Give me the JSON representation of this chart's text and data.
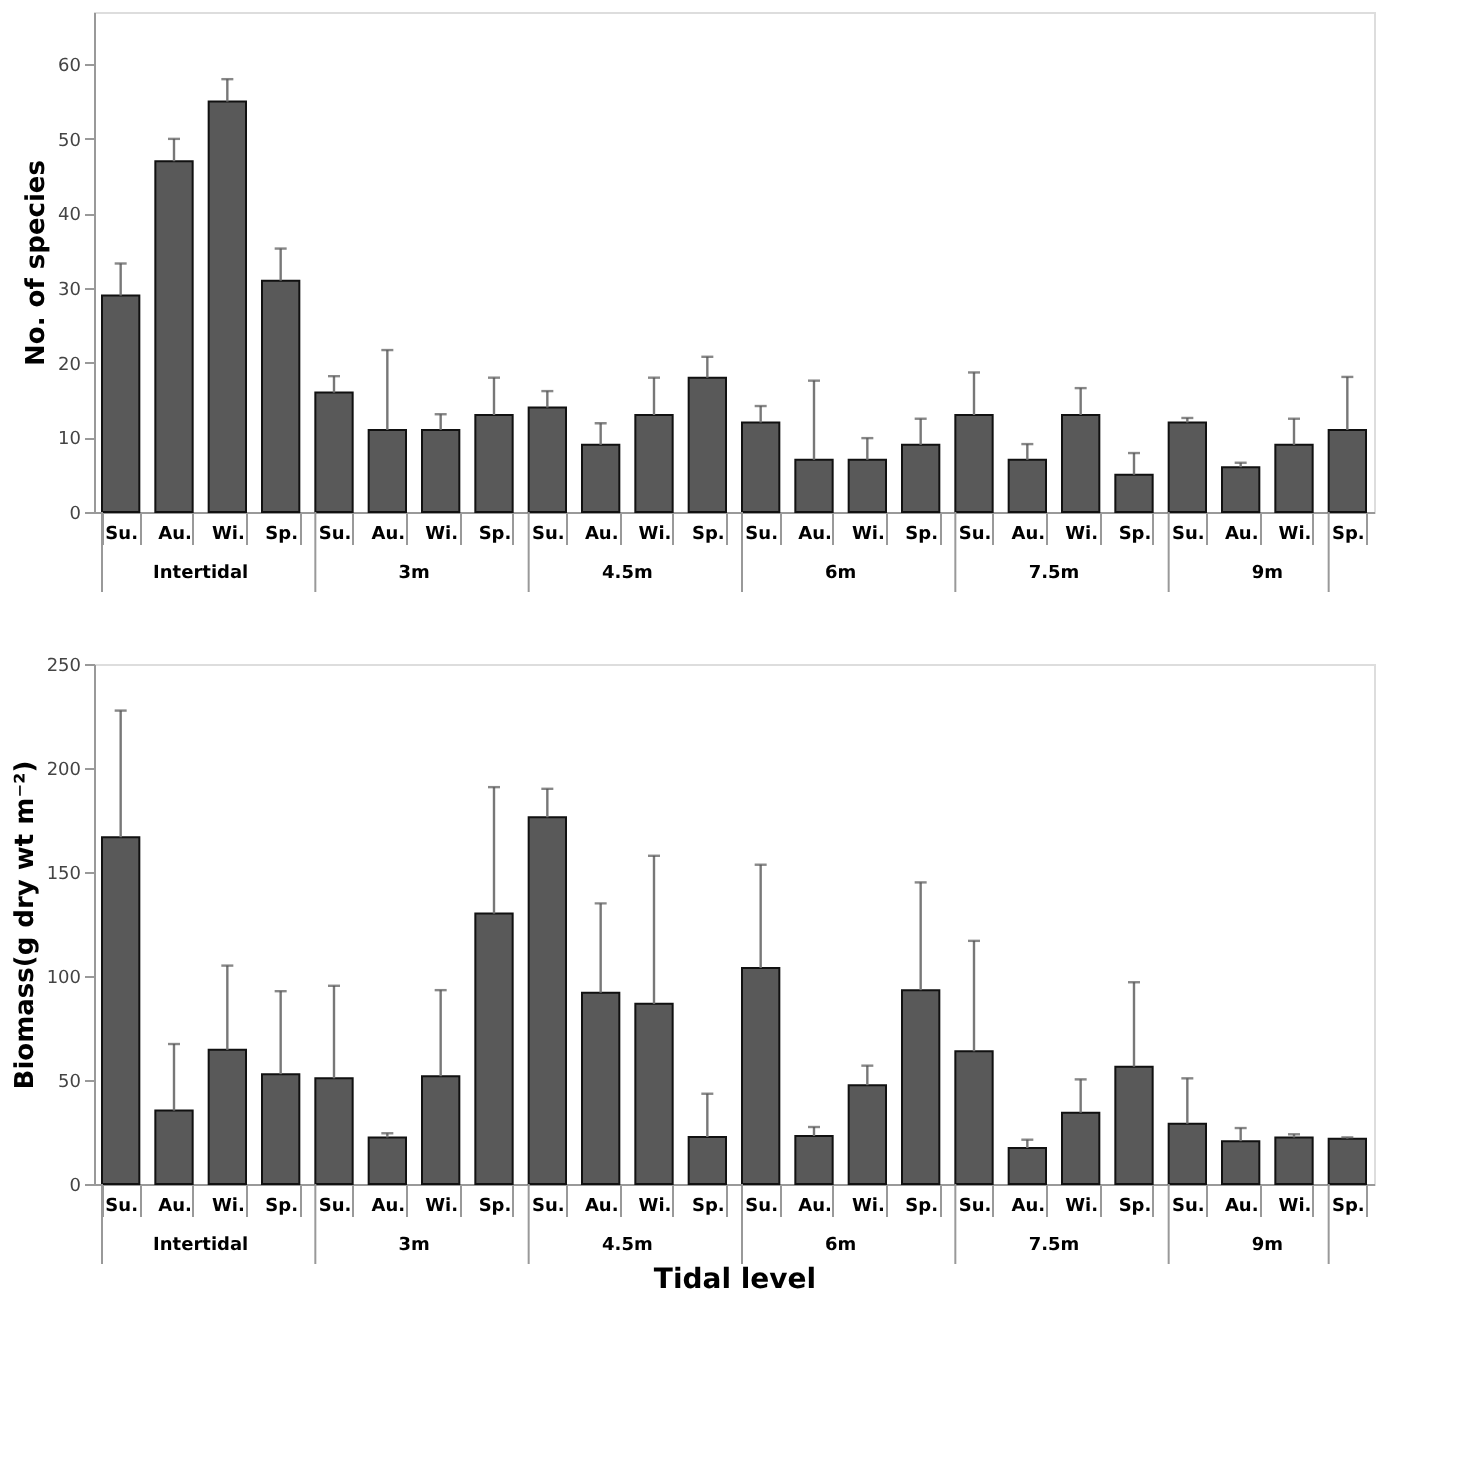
{
  "chart_data": [
    {
      "type": "bar",
      "ylabel": "No. of species",
      "color": "#595959",
      "grid": false,
      "ylim": [
        0,
        67
      ],
      "yticks": [
        0,
        10,
        20,
        30,
        40,
        50,
        60
      ],
      "categories": [
        "Su.",
        "Au.",
        "Wi.",
        "Sp.",
        "Su.",
        "Au.",
        "Wi.",
        "Sp.",
        "Su.",
        "Au.",
        "Wi.",
        "Sp.",
        "Su.",
        "Au.",
        "Wi.",
        "Sp.",
        "Su.",
        "Au.",
        "Wi.",
        "Sp.",
        "Su.",
        "Au.",
        "Wi.",
        "Sp."
      ],
      "values": [
        29,
        47,
        55,
        31,
        16,
        11,
        11,
        13,
        14,
        9,
        13,
        18,
        12,
        7,
        7,
        9,
        13,
        7,
        13,
        5,
        12,
        6,
        9,
        11
      ],
      "errors": [
        [
          29,
          33.3
        ],
        [
          47,
          50
        ],
        [
          55,
          58
        ],
        [
          31,
          35.3
        ],
        [
          16,
          18.2
        ],
        [
          11,
          21.7
        ],
        [
          11,
          13.1
        ],
        [
          13,
          18
        ],
        [
          14,
          16.2
        ],
        [
          9,
          11.9
        ],
        [
          13,
          18
        ],
        [
          18,
          20.8
        ],
        [
          12,
          14.2
        ],
        [
          7,
          17.6
        ],
        [
          7,
          9.9
        ],
        [
          9,
          12.5
        ],
        [
          13,
          18.7
        ],
        [
          7,
          9.1
        ],
        [
          13,
          16.6
        ],
        [
          5,
          7.9
        ],
        [
          12,
          12.6
        ],
        [
          6,
          6.6
        ],
        [
          9,
          12.5
        ],
        [
          11,
          18.1
        ]
      ],
      "annotations": [
        "Intertidal",
        "3m",
        "4.5m",
        "6m",
        "7.5m",
        "9m"
      ]
    },
    {
      "type": "bar",
      "ylabel": "Biomass(g dry wt m⁻²)",
      "xlabel": "Tidal level",
      "color": "#595959",
      "grid": false,
      "ylim": [
        0,
        250
      ],
      "yticks": [
        0,
        50,
        100,
        150,
        200,
        250
      ],
      "categories": [
        "Su.",
        "Au.",
        "Wi.",
        "Sp.",
        "Su.",
        "Au.",
        "Wi.",
        "Sp.",
        "Su.",
        "Au.",
        "Wi.",
        "Sp.",
        "Su.",
        "Au.",
        "Wi.",
        "Sp.",
        "Su.",
        "Au.",
        "Wi.",
        "Sp.",
        "Su.",
        "Au.",
        "Wi.",
        "Sp."
      ],
      "values": [
        166.7,
        35.3,
        64.5,
        52.8,
        50.8,
        22.4,
        51.8,
        130,
        176.3,
        92,
        86.6,
        22.6,
        103.9,
        23.1,
        47.5,
        93.2,
        63.8,
        17.3,
        34.3,
        56.4,
        29,
        20.6,
        22.4,
        21.8
      ],
      "errors": [
        [
          166.7,
          227.6
        ],
        [
          35.3,
          67.3
        ],
        [
          64.5,
          105
        ],
        [
          52.8,
          92.7
        ],
        [
          50.8,
          95.3
        ],
        [
          22.4,
          24.4
        ],
        [
          51.8,
          93.2
        ],
        [
          130,
          190.8
        ],
        [
          176.3,
          190
        ],
        [
          92,
          134.9
        ],
        [
          86.6,
          157.8
        ],
        [
          22.6,
          43.4
        ],
        [
          103.9,
          153.5
        ],
        [
          23.1,
          27.4
        ],
        [
          47.5,
          56.9
        ],
        [
          93.2,
          145
        ],
        [
          63.8,
          116.9
        ],
        [
          17.3,
          21.3
        ],
        [
          34.3,
          50.3
        ],
        [
          56.4,
          97
        ],
        [
          29,
          50.8
        ],
        [
          20.6,
          26.9
        ],
        [
          22.4,
          23.9
        ],
        [
          21.8,
          22.4
        ]
      ],
      "annotations": [
        "Intertidal",
        "3m",
        "4.5m",
        "6m",
        "7.5m",
        "9m"
      ]
    }
  ]
}
